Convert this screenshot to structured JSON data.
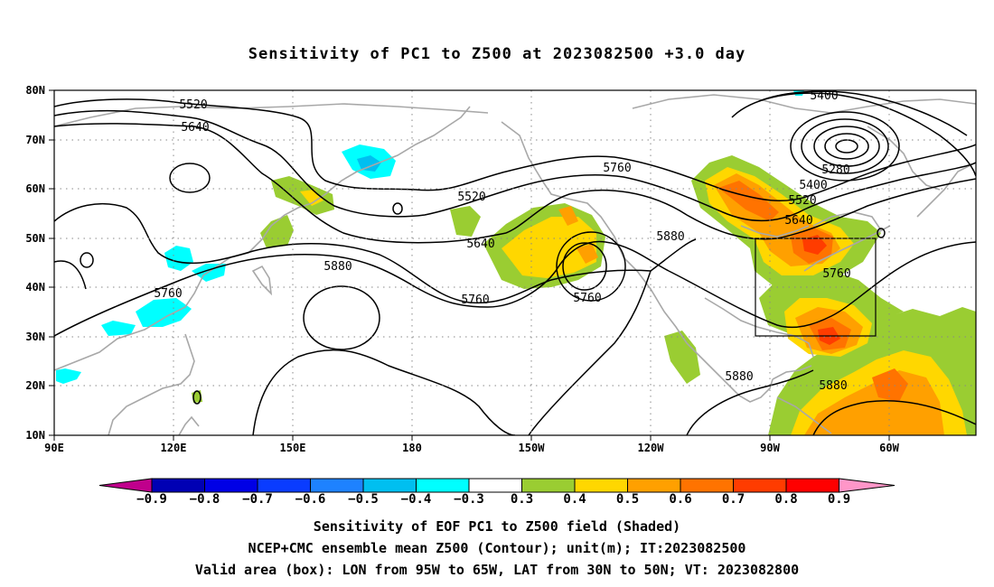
{
  "title": "Sensitivity of PC1 to Z500 at 2023082500 +3.0 day",
  "map": {
    "lat_labels": [
      "80N",
      "70N",
      "60N",
      "50N",
      "40N",
      "30N",
      "20N",
      "10N"
    ],
    "lon_labels": [
      "90E",
      "120E",
      "150E",
      "180",
      "150W",
      "120W",
      "90W",
      "60W"
    ],
    "lon_range_deg": [
      90,
      322
    ],
    "lat_range_deg": [
      10,
      80
    ],
    "grid": "dotted",
    "contour_labels": [
      "5400",
      "5280",
      "5400",
      "5520",
      "5640",
      "5520",
      "5640",
      "5760",
      "5520",
      "5640",
      "5880",
      "5760",
      "5760",
      "5760",
      "5880",
      "5760",
      "5880",
      "5880"
    ],
    "valid_box": {
      "lon": [
        -95,
        -65
      ],
      "lat": [
        30,
        50
      ]
    }
  },
  "colorbar": {
    "labels": [
      "−0.9",
      "−0.8",
      "−0.7",
      "−0.6",
      "−0.5",
      "−0.4",
      "−0.3",
      "0.3",
      "0.4",
      "0.5",
      "0.6",
      "0.7",
      "0.8",
      "0.9"
    ],
    "colors": [
      "#c0008c",
      "#0000b4",
      "#0000e6",
      "#0a3cff",
      "#1e82ff",
      "#00bff0",
      "#00ffff",
      "#ffffff",
      "#9acd32",
      "#ffd700",
      "#ffa000",
      "#ff7300",
      "#ff3c00",
      "#ff0000",
      "#ff96c8"
    ]
  },
  "captions": [
    "Sensitivity of EOF PC1 to Z500 field (Shaded)",
    "NCEP+CMC ensemble mean Z500 (Contour); unit(m); IT:2023082500",
    "Valid area (box): LON from 95W to 65W, LAT from 30N to 50N; VT: 2023082800"
  ]
}
